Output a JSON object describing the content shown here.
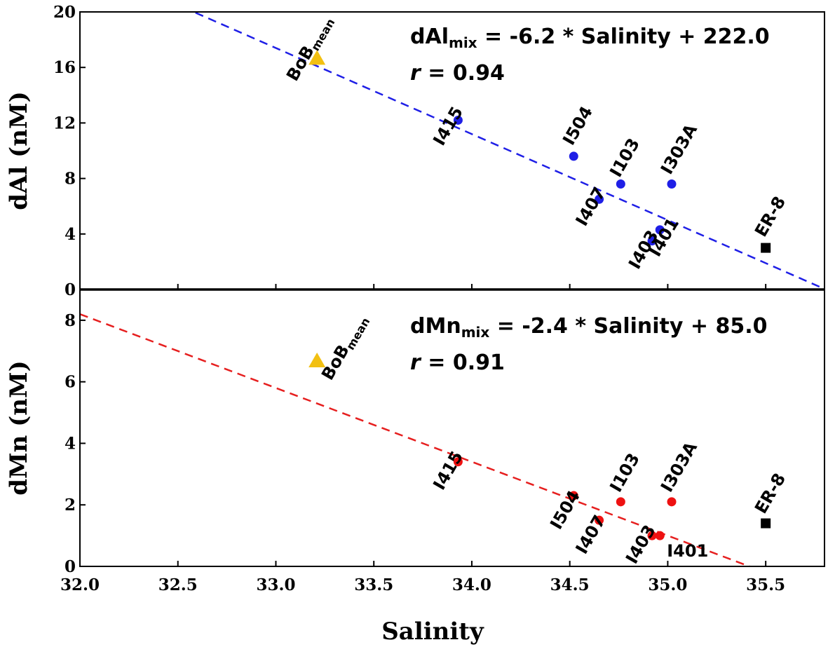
{
  "chart_data": [
    {
      "type": "scatter",
      "panel": "top",
      "ylabel": "dAl (nM)",
      "xlabel": "Salinity",
      "xlim": [
        32.0,
        35.8
      ],
      "ylim": [
        0,
        20
      ],
      "yticks": [
        0,
        4,
        8,
        12,
        16,
        20
      ],
      "xticks": [
        32.0,
        32.5,
        33.0,
        33.5,
        34.0,
        34.5,
        35.0,
        35.5
      ],
      "equation": {
        "lhs": "dAl",
        "sub": "mix",
        "rhs": " = -6.2 * Salinity + 222.0",
        "r_symbol": "r",
        "r_rest": " = 0.94"
      },
      "fit": {
        "slope": -6.2,
        "intercept": 222.0,
        "color": "#1f1fe6"
      },
      "bob_mean": {
        "label": "BoB",
        "sub": "mean",
        "x": 33.21,
        "y": 16.7,
        "color": "#f2c012"
      },
      "er8": {
        "label": "ER-8",
        "x": 35.5,
        "y": 3.0,
        "color": "#000000"
      },
      "point_color": "#1f1fe6",
      "points": [
        {
          "label": "I415",
          "x": 33.93,
          "y": 12.2
        },
        {
          "label": "I504",
          "x": 34.52,
          "y": 9.6
        },
        {
          "label": "I103",
          "x": 34.76,
          "y": 7.6
        },
        {
          "label": "I303A",
          "x": 35.02,
          "y": 7.6
        },
        {
          "label": "I407",
          "x": 34.65,
          "y": 6.5
        },
        {
          "label": "I403",
          "x": 34.92,
          "y": 3.5
        },
        {
          "label": "I401",
          "x": 34.96,
          "y": 4.3
        }
      ]
    },
    {
      "type": "scatter",
      "panel": "bottom",
      "ylabel": "dMn (nM)",
      "xlabel": "Salinity",
      "xlim": [
        32.0,
        35.8
      ],
      "ylim": [
        0,
        9
      ],
      "yticks": [
        0,
        2,
        4,
        6,
        8
      ],
      "xticks": [
        32.0,
        32.5,
        33.0,
        33.5,
        34.0,
        34.5,
        35.0,
        35.5
      ],
      "equation": {
        "lhs": "dMn",
        "sub": "mix",
        "rhs": " = -2.4 * Salinity + 85.0",
        "r_symbol": "r",
        "r_rest": " = 0.91"
      },
      "fit": {
        "slope": -2.4,
        "intercept": 85.0,
        "color": "#e61f1f"
      },
      "bob_mean": {
        "label": "BoB",
        "sub": "mean",
        "x": 33.21,
        "y": 6.7,
        "color": "#f2c012"
      },
      "er8": {
        "label": "ER-8",
        "x": 35.5,
        "y": 1.4,
        "color": "#000000"
      },
      "point_color": "#ee1111",
      "points": [
        {
          "label": "I415",
          "x": 33.93,
          "y": 3.4
        },
        {
          "label": "I504",
          "x": 34.52,
          "y": 2.3
        },
        {
          "label": "I103",
          "x": 34.76,
          "y": 2.1
        },
        {
          "label": "I303A",
          "x": 35.02,
          "y": 2.1
        },
        {
          "label": "I407",
          "x": 34.65,
          "y": 1.5
        },
        {
          "label": "I403",
          "x": 34.92,
          "y": 1.0
        },
        {
          "label": "I401",
          "x": 34.96,
          "y": 1.0
        }
      ]
    }
  ]
}
